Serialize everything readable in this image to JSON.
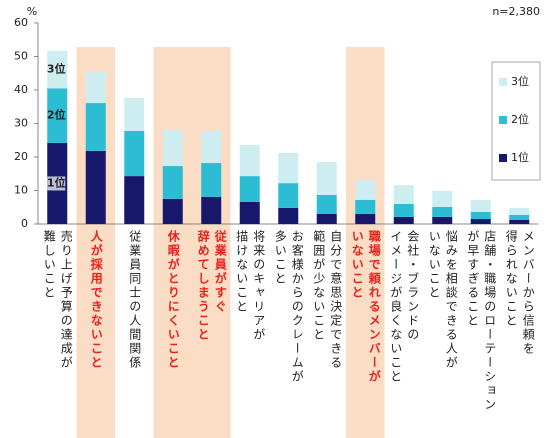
{
  "chart_data": {
    "type": "stacked-bar",
    "y_unit": "%",
    "note": "n=2,380",
    "categories": [
      "売り上げ予算の達成が\n難しいこと",
      "人が採用できないこと",
      "従業員同士の人間関係",
      "休暇がとりにくいこと",
      "従業員がすぐ\n辞めてしまうこと",
      "将来のキャリアが\n描けないこと",
      "お客様からのクレームが\n多いこと",
      "自分で意思決定できる\n範囲が少ないこと",
      "職場で頼れるメンバーが\nいないこと",
      "会社・ブランドの\nイメージが良くないこと",
      "悩みを相談できる人が\nいないこと",
      "店舗・職場のローテーション\nが早すぎること",
      "メンバーから信頼を\n得られないこと"
    ],
    "highlighted": [
      false,
      true,
      false,
      true,
      true,
      false,
      false,
      false,
      true,
      false,
      false,
      false,
      false
    ],
    "highlight_color": "#fbdcc4",
    "highlight_text_color": "#e8231c",
    "series": [
      {
        "name": "1位",
        "color": "#17186b",
        "values": [
          24.2,
          21.8,
          14.3,
          7.5,
          8.1,
          6.6,
          4.8,
          3.0,
          3.0,
          2.1,
          2.1,
          1.5,
          1.2
        ]
      },
      {
        "name": "2位",
        "color": "#2cbcd3",
        "values": [
          16.3,
          14.3,
          13.5,
          9.8,
          10.1,
          7.7,
          7.4,
          5.7,
          4.2,
          3.9,
          3.0,
          2.1,
          1.5
        ]
      },
      {
        "name": "3位",
        "color": "#cdedf1",
        "values": [
          11.2,
          9.3,
          9.8,
          10.8,
          9.6,
          9.3,
          9.0,
          9.8,
          5.9,
          5.6,
          4.8,
          3.6,
          2.1
        ]
      }
    ],
    "ylim": [
      0,
      60
    ],
    "yticks": [
      0,
      10,
      20,
      30,
      40,
      50,
      60
    ]
  }
}
